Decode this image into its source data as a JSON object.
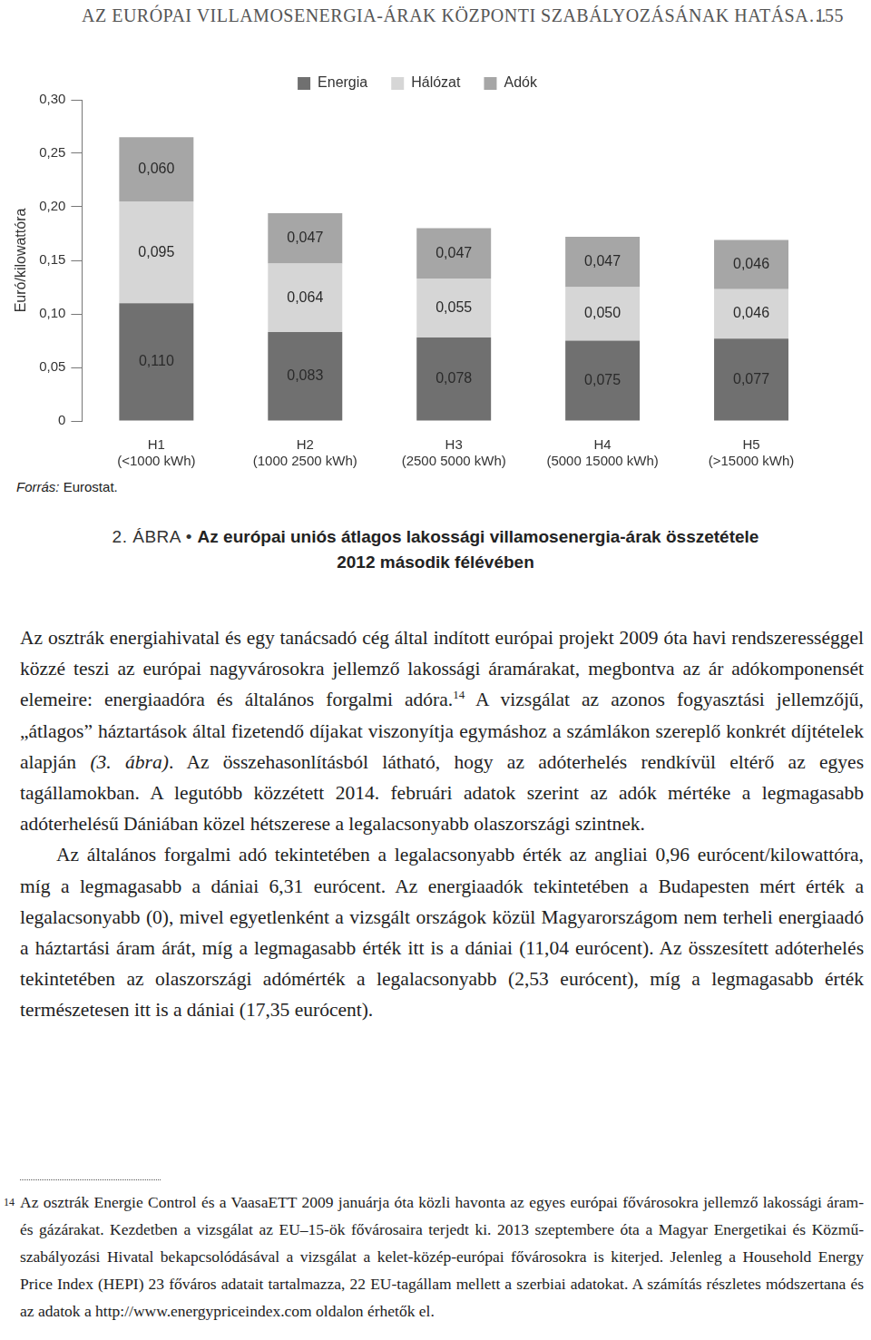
{
  "header": {
    "title": "AZ EURÓPAI VILLAMOSENERGIA-ÁRAK KÖZPONTI SZABÁLYOZÁSÁNAK HATÁSA…",
    "page": "155"
  },
  "chart_data": {
    "type": "bar",
    "stacked": true,
    "y_label": "Euró/kilowattóra",
    "categories": [
      [
        "H1",
        "(<1000 kWh)"
      ],
      [
        "H2",
        "(1000 2500 kWh)"
      ],
      [
        "H3",
        "(2500 5000 kWh)"
      ],
      [
        "H4",
        "(5000 15000 kWh)"
      ],
      [
        "H5",
        "(>15000 kWh)"
      ]
    ],
    "series": [
      {
        "name": "Energia",
        "color": "#707070",
        "values": [
          0.11,
          0.083,
          0.078,
          0.075,
          0.077
        ],
        "value_labels": [
          "0,110",
          "0,083",
          "0,078",
          "0,075",
          "0,077"
        ]
      },
      {
        "name": "Hálózat",
        "color": "#d6d6d6",
        "values": [
          0.095,
          0.064,
          0.055,
          0.05,
          0.046
        ],
        "value_labels": [
          "0,095",
          "0,064",
          "0,055",
          "0,050",
          "0,046"
        ]
      },
      {
        "name": "Adók",
        "color": "#a6a6a6",
        "values": [
          0.06,
          0.047,
          0.047,
          0.047,
          0.046
        ],
        "value_labels": [
          "0,060",
          "0,047",
          "0,047",
          "0,047",
          "0,046"
        ]
      }
    ],
    "ylim": [
      0,
      0.3
    ],
    "yticks": [
      0,
      {
        "value": 0.05,
        "label": "0,05"
      },
      {
        "value": 0.1,
        "label": "0,10"
      },
      {
        "value": 0.15,
        "label": "0,15"
      },
      {
        "value": 0.2,
        "label": "0,20"
      },
      {
        "value": 0.25,
        "label": "0,25"
      },
      {
        "value": 0.3,
        "label": "0,30"
      }
    ],
    "grid": false,
    "legend": "top",
    "data_labels": true
  },
  "source": {
    "label": "Forrás:",
    "text": "Eurostat."
  },
  "caption": {
    "figure_label": "2. ÁBRA",
    "separator": "•",
    "title_lines": [
      "Az európai uniós átlagos lakossági villamosenergia-árak összetétele",
      "2012 második félévében"
    ]
  },
  "paragraphs": [
    [
      {
        "text": "Az osztrák energiahivatal és egy tanácsadó cég által indított európai projekt 2009 óta havi rendszerességgel közzé teszi az európai nagyvárosokra jellemző lakossági áramárakat, megbontva az ár adókomponensét elemeire: energiaadóra és általános forgalmi adóra."
      },
      {
        "text": "14",
        "style": "sup"
      },
      {
        "text": " A vizsgálat az azonos fogyasztási jellemzőjű, „átlagos” háztartások által fizetendő díjakat viszonyítja egymáshoz a számlákon szereplő konkrét díjtételek alapján "
      },
      {
        "text": "(3. ábra)",
        "style": "italic"
      },
      {
        "text": ". Az összehasonlításból látható, hogy az adóterhelés rendkívül eltérő az egyes tagállamokban. A legutóbb közzétett 2014. februári adatok szerint az adók mértéke a legmagasabb adóterhelésű Dániában közel hétszerese a legalacsonyabb olaszországi szintnek."
      }
    ],
    [
      {
        "text": "Az általános forgalmi adó tekintetében a legalacsonyabb érték az angliai 0,96 eurócent/kilowattóra, míg a legmagasabb a dániai 6,31 eurócent. Az energiaadók tekintetében a Budapesten mért érték a legalacsonyabb (0), mivel egyetlenként a vizsgált országok közül Magyarországom nem terheli energiaadó a háztartási áram árát, míg a legmagasabb érték itt is a dániai (11,04 eurócent). Az összesített adóterhelés tekintetében az olaszországi adómérték a legalacsonyabb (2,53 eurócent), míg a legmagasabb érték természetesen itt is a dániai (17,35 eurócent)."
      }
    ]
  ],
  "footnote": {
    "number": "14",
    "text": "Az osztrák Energie Control és a VaasaETT 2009 januárja óta közli havonta az egyes európai fővárosokra jellemző lakossági áram- és gázárakat. Kezdetben a vizsgálat az EU–15-ök fővárosaira terjedt ki. 2013 szeptembere óta a Magyar Energetikai és Közmű-szabályozási Hivatal bekapcsolódásával a vizsgálat a kelet-közép-európai fővárosokra is kiterjed. Jelenleg a Household Energy Price Index (HEPI) 23 főváros adatait tartalmazza, 22 EU-tagállam mellett a szerbiai adatokat. A számítás részletes módszertana és az adatok a http://www.energypriceindex.com oldalon érhetők el."
  }
}
